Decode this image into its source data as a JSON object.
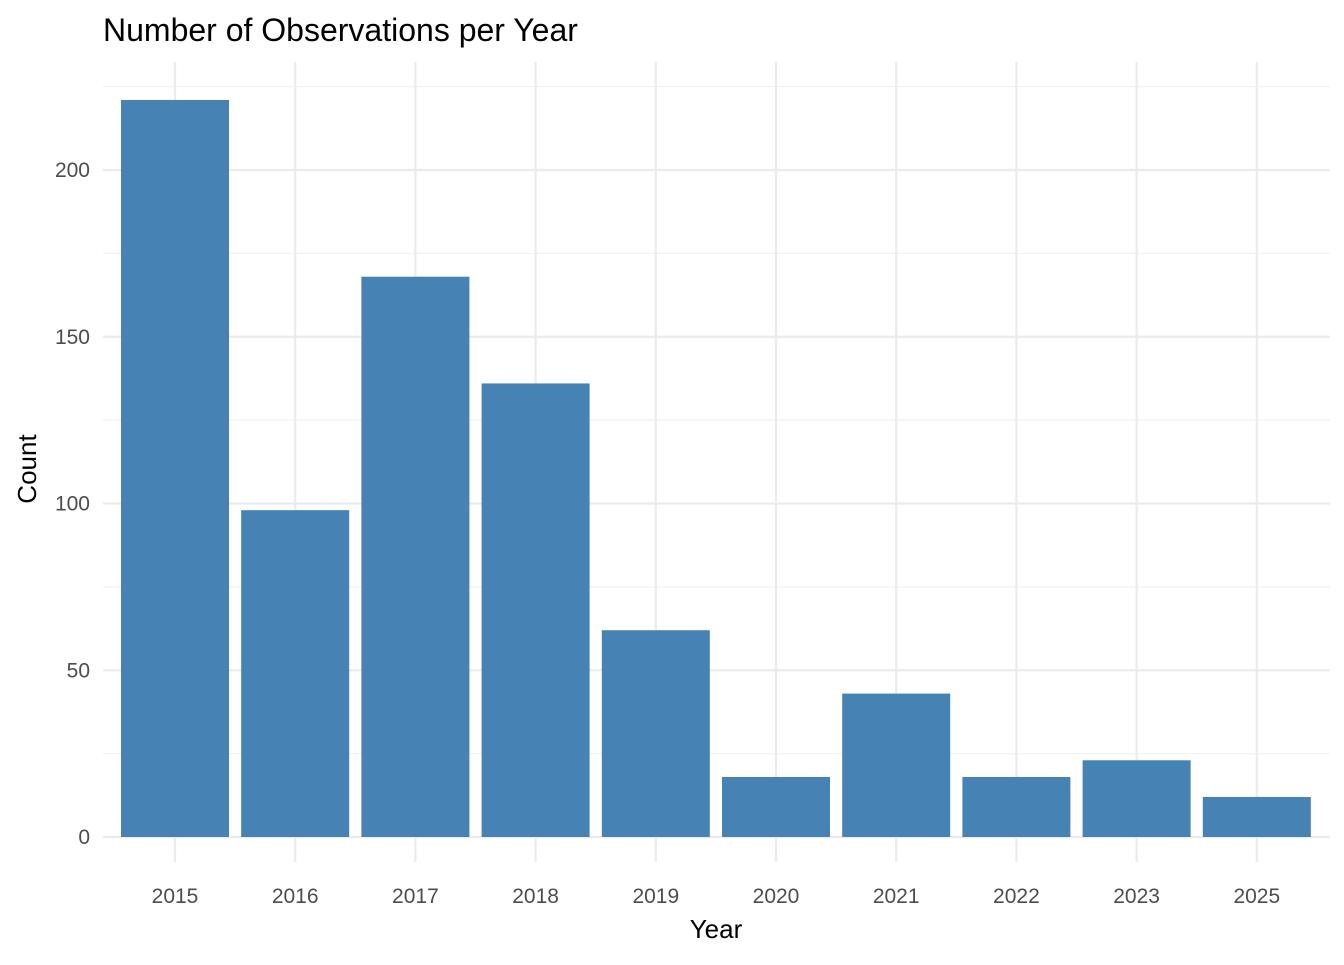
{
  "chart_data": {
    "type": "bar",
    "title": "Number of Observations per Year",
    "xlabel": "Year",
    "ylabel": "Count",
    "categories": [
      "2015",
      "2016",
      "2017",
      "2018",
      "2019",
      "2020",
      "2021",
      "2022",
      "2023",
      "2025"
    ],
    "values": [
      221,
      98,
      168,
      136,
      62,
      18,
      43,
      18,
      23,
      12
    ],
    "ylim": [
      0,
      225
    ],
    "yticks": [
      0,
      50,
      100,
      150,
      200
    ],
    "grid": true,
    "legend": "none",
    "bar_color": "#4682B4"
  }
}
